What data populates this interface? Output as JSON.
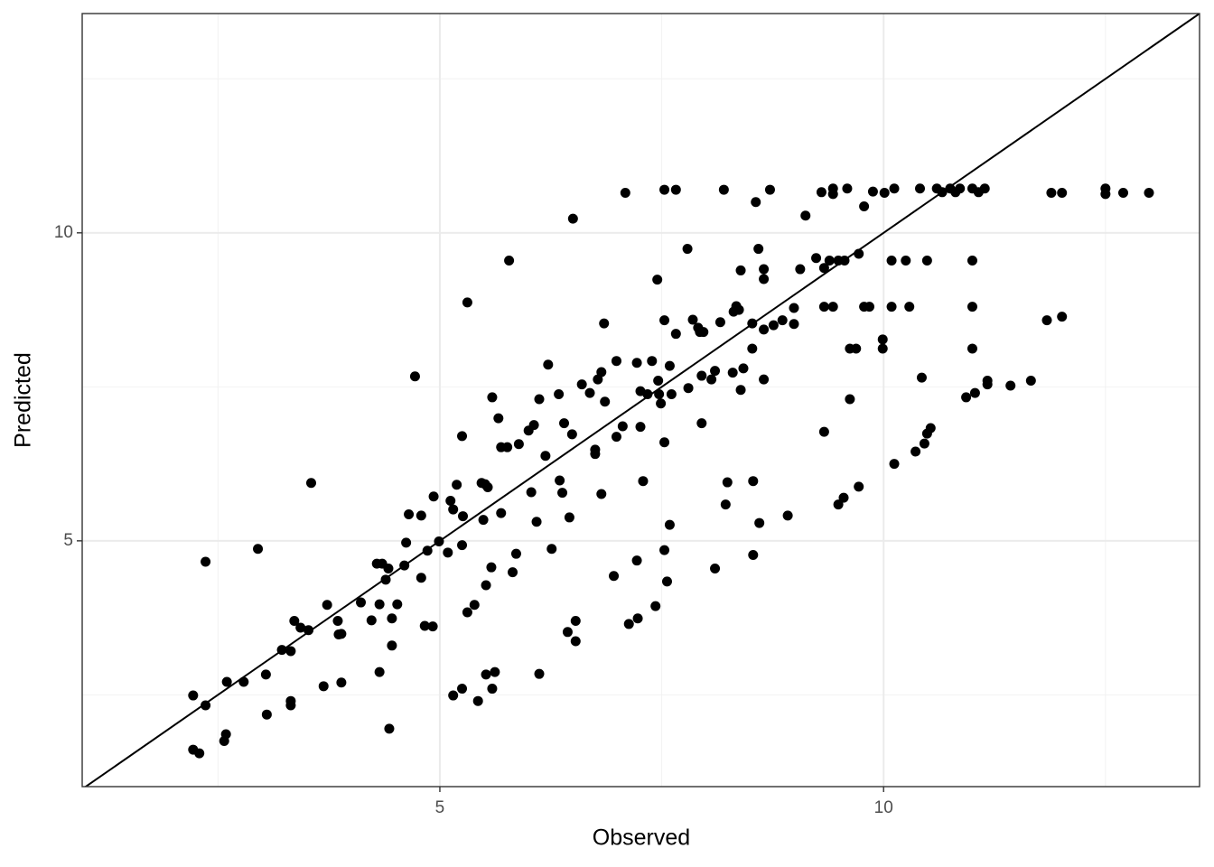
{
  "chart_data": {
    "type": "scatter",
    "xlabel": "Observed",
    "ylabel": "Predicted",
    "xlim": [
      0.97,
      13.56
    ],
    "ylim": [
      1.01,
      13.56
    ],
    "xticks": [
      5,
      10
    ],
    "yticks": [
      5,
      10
    ],
    "x_minor_grid": [
      2.5,
      7.5,
      12.5
    ],
    "y_minor_grid": [
      2.5,
      7.5,
      12.5
    ],
    "grid": true,
    "color": "#000000",
    "reference_line": {
      "slope": 1,
      "intercept": 0,
      "color": "#000000"
    },
    "x": [
      2.22,
      2.22,
      2.29,
      2.36,
      2.36,
      2.57,
      2.59,
      2.6,
      2.79,
      2.95,
      3.04,
      3.05,
      3.22,
      3.32,
      3.32,
      3.32,
      3.36,
      3.43,
      3.52,
      3.55,
      3.69,
      3.73,
      3.85,
      3.86,
      3.89,
      3.89,
      4.11,
      4.23,
      4.29,
      4.32,
      4.32,
      4.35,
      4.39,
      4.42,
      4.43,
      4.46,
      4.46,
      4.52,
      4.6,
      4.62,
      4.65,
      4.72,
      4.79,
      4.79,
      4.83,
      4.86,
      4.92,
      4.93,
      4.99,
      5.09,
      5.12,
      5.15,
      5.15,
      5.19,
      5.25,
      5.25,
      5.25,
      5.26,
      5.31,
      5.31,
      5.39,
      5.43,
      5.47,
      5.49,
      5.51,
      5.52,
      5.52,
      5.54,
      5.58,
      5.59,
      5.59,
      5.62,
      5.66,
      5.69,
      5.69,
      5.78,
      5.76,
      5.82,
      5.86,
      5.89,
      6.0,
      6.03,
      6.06,
      6.09,
      6.12,
      6.12,
      6.19,
      6.22,
      6.26,
      6.34,
      6.35,
      6.38,
      6.4,
      6.44,
      6.46,
      6.49,
      6.5,
      6.53,
      6.53,
      6.6,
      6.69,
      6.75,
      6.75,
      6.78,
      6.82,
      6.82,
      6.85,
      6.86,
      6.96,
      6.99,
      6.99,
      7.06,
      7.09,
      7.13,
      7.22,
      7.22,
      7.23,
      7.26,
      7.26,
      7.29,
      7.34,
      7.39,
      7.43,
      7.45,
      7.46,
      7.47,
      7.49,
      7.53,
      7.53,
      7.53,
      7.53,
      7.56,
      7.59,
      7.59,
      7.61,
      7.66,
      7.66,
      7.79,
      7.8,
      7.85,
      7.91,
      7.93,
      7.95,
      7.95,
      7.97,
      8.06,
      8.1,
      8.1,
      8.16,
      8.2,
      8.22,
      8.24,
      8.3,
      8.31,
      8.34,
      8.37,
      8.39,
      8.39,
      8.42,
      8.52,
      8.52,
      8.53,
      8.53,
      8.56,
      8.59,
      8.6,
      8.65,
      8.65,
      8.65,
      8.65,
      8.72,
      8.76,
      8.86,
      8.92,
      8.99,
      8.99,
      9.06,
      9.12,
      9.24,
      9.3,
      9.33,
      9.33,
      9.33,
      9.39,
      9.43,
      9.43,
      9.43,
      9.49,
      9.49,
      9.55,
      9.56,
      9.59,
      9.62,
      9.62,
      9.69,
      9.72,
      9.72,
      9.78,
      9.78,
      9.84,
      9.88,
      9.99,
      9.99,
      10.01,
      10.09,
      10.09,
      10.12,
      10.12,
      10.25,
      10.29,
      10.36,
      10.41,
      10.43,
      10.46,
      10.49,
      10.49,
      10.53,
      10.6,
      10.66,
      10.75,
      10.81,
      10.86,
      10.93,
      11.0,
      11.0,
      11.0,
      11.0,
      11.03,
      11.07,
      11.14,
      11.17,
      11.17,
      11.43,
      11.66,
      11.84,
      11.89,
      12.01,
      12.01,
      12.5,
      12.5,
      12.7,
      12.99
    ],
    "y": [
      2.49,
      1.61,
      1.55,
      4.66,
      2.33,
      1.75,
      1.86,
      2.71,
      2.71,
      4.87,
      2.83,
      2.18,
      3.23,
      3.21,
      2.4,
      2.33,
      3.7,
      3.59,
      3.55,
      5.94,
      2.64,
      3.96,
      3.7,
      3.48,
      3.49,
      2.7,
      4.0,
      3.71,
      4.63,
      3.97,
      2.87,
      4.63,
      4.37,
      4.55,
      1.95,
      3.74,
      3.3,
      3.97,
      4.6,
      4.97,
      5.43,
      7.67,
      5.41,
      4.4,
      3.62,
      4.84,
      3.61,
      5.72,
      4.99,
      4.81,
      5.65,
      5.51,
      2.49,
      5.91,
      6.7,
      4.93,
      2.6,
      5.4,
      8.87,
      3.84,
      3.96,
      2.4,
      5.94,
      5.34,
      5.92,
      4.28,
      2.83,
      5.87,
      4.57,
      7.33,
      2.6,
      2.87,
      6.99,
      5.45,
      6.52,
      9.55,
      6.52,
      4.49,
      4.79,
      6.57,
      6.79,
      5.79,
      6.88,
      5.31,
      7.3,
      2.84,
      6.38,
      7.86,
      4.87,
      7.38,
      5.98,
      5.78,
      6.91,
      3.52,
      5.38,
      6.73,
      10.23,
      3.7,
      3.37,
      7.54,
      7.4,
      6.48,
      6.41,
      7.62,
      7.74,
      5.76,
      8.53,
      7.26,
      4.43,
      6.69,
      7.92,
      6.86,
      10.65,
      3.65,
      7.89,
      4.68,
      3.74,
      7.43,
      6.85,
      5.97,
      7.38,
      7.92,
      3.94,
      9.24,
      7.6,
      7.38,
      7.23,
      10.7,
      8.58,
      6.6,
      4.85,
      4.34,
      7.84,
      5.26,
      7.38,
      8.36,
      10.7,
      9.74,
      7.48,
      8.59,
      8.46,
      8.39,
      7.68,
      6.91,
      8.39,
      7.62,
      4.55,
      7.76,
      8.55,
      10.7,
      5.59,
      5.95,
      7.73,
      8.72,
      8.81,
      8.75,
      9.39,
      7.45,
      7.8,
      8.12,
      8.53,
      5.97,
      4.77,
      10.5,
      9.74,
      5.29,
      9.41,
      9.25,
      8.43,
      7.62,
      10.7,
      8.5,
      8.58,
      5.41,
      8.78,
      8.52,
      9.41,
      10.28,
      9.59,
      10.66,
      9.43,
      8.8,
      6.77,
      9.55,
      8.8,
      10.72,
      10.63,
      5.59,
      9.55,
      5.7,
      9.55,
      10.72,
      7.3,
      8.12,
      8.12,
      5.88,
      9.66,
      10.43,
      8.8,
      8.8,
      10.67,
      8.27,
      8.12,
      10.65,
      9.55,
      8.8,
      10.72,
      6.25,
      9.55,
      8.8,
      6.45,
      10.72,
      7.65,
      6.58,
      9.55,
      6.74,
      6.83,
      10.72,
      10.66,
      10.72,
      10.66,
      10.72,
      7.33,
      10.72,
      9.55,
      8.8,
      8.12,
      7.4,
      10.66,
      10.72,
      7.54,
      7.6,
      7.52,
      7.6,
      8.58,
      10.65,
      10.65,
      8.64,
      10.72,
      10.63,
      10.65,
      10.65
    ]
  }
}
